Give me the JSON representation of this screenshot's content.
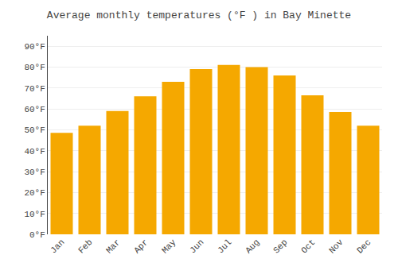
{
  "chart_data": {
    "type": "bar",
    "title": "Average monthly temperatures (°F ) in Bay Minette",
    "categories": [
      "Jan",
      "Feb",
      "Mar",
      "Apr",
      "May",
      "Jun",
      "Jul",
      "Aug",
      "Sep",
      "Oct",
      "Nov",
      "Dec"
    ],
    "values": [
      48.5,
      52.0,
      59.0,
      66.0,
      73.0,
      79.0,
      81.0,
      80.0,
      76.0,
      66.5,
      58.5,
      52.0
    ],
    "color": "#F5A800",
    "ylim": [
      0,
      95
    ],
    "yticks": [
      {
        "value": 0,
        "label": "0°F"
      },
      {
        "value": 10,
        "label": "10°F"
      },
      {
        "value": 20,
        "label": "20°F"
      },
      {
        "value": 30,
        "label": "30°F"
      },
      {
        "value": 40,
        "label": "40°F"
      },
      {
        "value": 50,
        "label": "50°F"
      },
      {
        "value": 60,
        "label": "60°F"
      },
      {
        "value": 70,
        "label": "70°F"
      },
      {
        "value": 80,
        "label": "80°F"
      },
      {
        "value": 90,
        "label": "90°F"
      }
    ],
    "grid": true
  }
}
